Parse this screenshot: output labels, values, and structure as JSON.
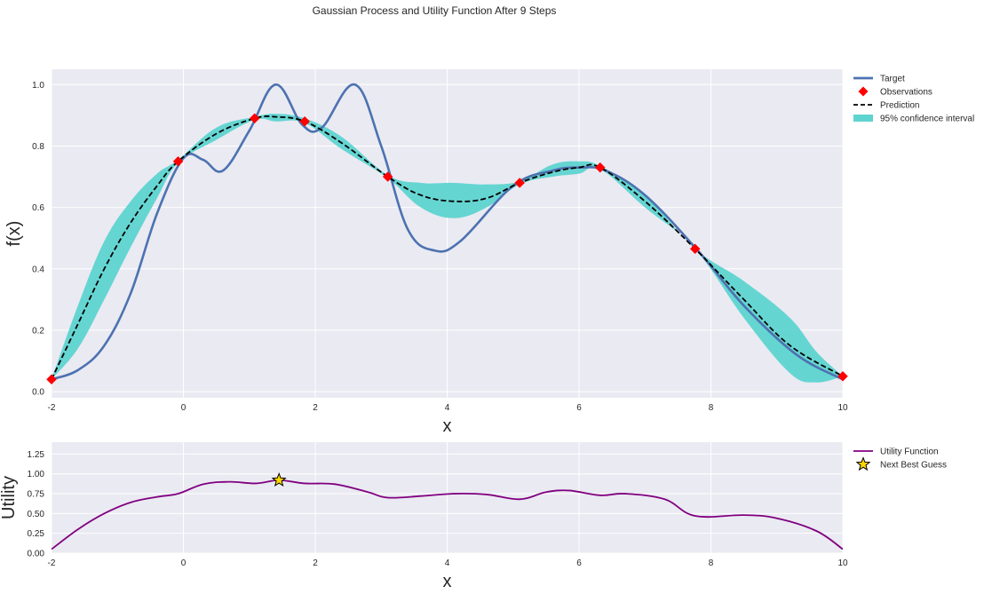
{
  "figure": {
    "title": "Gaussian Process and Utility Function After 9 Steps"
  },
  "colors": {
    "background": "#EAEAF2",
    "grid": "#FFFFFF",
    "target": "#4C72B0",
    "observations": "#FF0000",
    "prediction": "#000000",
    "confidence": "#5ED4D0",
    "utility": "#800080",
    "next_best": "#FFD700"
  },
  "chart_data": [
    {
      "type": "line",
      "xlabel": "x",
      "ylabel": "f(x)",
      "xlim": [
        -2,
        10
      ],
      "ylim": [
        -0.02,
        1.05
      ],
      "xticks": [
        "-2",
        "0",
        "2",
        "4",
        "6",
        "8",
        "10"
      ],
      "yticks": [
        "0.0",
        "0.2",
        "0.4",
        "0.6",
        "0.8",
        "1.0"
      ],
      "grid": true,
      "legend_position": "outside-top-right",
      "legend": [
        "Target",
        "Observations",
        "Prediction",
        "95% confidence interval"
      ],
      "series": [
        {
          "name": "Target",
          "kind": "line",
          "x": [
            -2,
            -1.6,
            -1.2,
            -0.8,
            -0.4,
            0,
            0.3,
            0.6,
            1.0,
            1.4,
            1.8,
            2.1,
            2.6,
            3.0,
            3.4,
            3.8,
            4.2,
            5.0,
            5.6,
            6.0,
            6.4,
            7.0,
            7.8,
            8.5,
            9.3,
            10
          ],
          "y": [
            0.04,
            0.07,
            0.15,
            0.32,
            0.58,
            0.76,
            0.755,
            0.72,
            0.85,
            1.0,
            0.87,
            0.86,
            1.0,
            0.8,
            0.53,
            0.46,
            0.49,
            0.67,
            0.72,
            0.73,
            0.72,
            0.64,
            0.46,
            0.28,
            0.12,
            0.04
          ]
        },
        {
          "name": "Observations",
          "kind": "scatter",
          "x": [
            -2,
            -0.08,
            1.08,
            1.84,
            3.1,
            5.1,
            6.32,
            7.76,
            10
          ],
          "y": [
            0.04,
            0.75,
            0.89,
            0.88,
            0.7,
            0.68,
            0.73,
            0.465,
            0.05
          ]
        },
        {
          "name": "Prediction",
          "kind": "line",
          "x": [
            -2,
            -1.6,
            -1.2,
            -0.8,
            -0.4,
            -0.08,
            0.5,
            1.08,
            1.4,
            1.84,
            2.4,
            3.1,
            3.6,
            4.1,
            4.6,
            5.1,
            5.6,
            6.0,
            6.32,
            7.0,
            7.76,
            8.5,
            9.2,
            10
          ],
          "y": [
            0.04,
            0.22,
            0.4,
            0.55,
            0.67,
            0.75,
            0.84,
            0.89,
            0.895,
            0.88,
            0.81,
            0.7,
            0.64,
            0.62,
            0.63,
            0.68,
            0.715,
            0.73,
            0.73,
            0.62,
            0.465,
            0.3,
            0.15,
            0.05
          ]
        },
        {
          "name": "95% confidence interval",
          "kind": "band",
          "x": [
            -2,
            -1.6,
            -1.2,
            -0.8,
            -0.4,
            -0.08,
            0.5,
            1.08,
            1.4,
            1.84,
            2.4,
            3.1,
            3.6,
            4.1,
            4.6,
            5.1,
            5.6,
            6.0,
            6.32,
            7.0,
            7.76,
            8.5,
            9.2,
            9.6,
            10
          ],
          "lower": [
            0.04,
            0.14,
            0.3,
            0.47,
            0.63,
            0.745,
            0.82,
            0.885,
            0.88,
            0.875,
            0.79,
            0.695,
            0.6,
            0.565,
            0.6,
            0.675,
            0.7,
            0.71,
            0.725,
            0.6,
            0.465,
            0.24,
            0.06,
            0.03,
            0.05
          ],
          "upper": [
            0.04,
            0.28,
            0.49,
            0.62,
            0.71,
            0.755,
            0.86,
            0.895,
            0.905,
            0.89,
            0.83,
            0.705,
            0.68,
            0.68,
            0.675,
            0.685,
            0.74,
            0.75,
            0.735,
            0.64,
            0.465,
            0.36,
            0.24,
            0.13,
            0.05
          ]
        }
      ]
    },
    {
      "type": "line",
      "xlabel": "x",
      "ylabel": "Utility",
      "xlim": [
        -2,
        10
      ],
      "ylim": [
        0,
        1.4
      ],
      "xticks": [
        "-2",
        "0",
        "2",
        "4",
        "6",
        "8",
        "10"
      ],
      "yticks": [
        "0.00",
        "0.25",
        "0.50",
        "0.75",
        "1.00",
        "1.25"
      ],
      "grid": true,
      "legend_position": "outside-top-right",
      "legend": [
        "Utility Function",
        "Next Best Guess"
      ],
      "series": [
        {
          "name": "Utility Function",
          "kind": "line",
          "x": [
            -2,
            -1.6,
            -1.2,
            -0.8,
            -0.4,
            -0.08,
            0.3,
            0.7,
            1.1,
            1.45,
            1.84,
            2.3,
            2.8,
            3.1,
            3.6,
            4.1,
            4.6,
            5.1,
            5.5,
            5.85,
            6.32,
            6.7,
            7.3,
            7.76,
            8.5,
            9.0,
            9.6,
            10
          ],
          "y": [
            0.05,
            0.3,
            0.5,
            0.64,
            0.71,
            0.75,
            0.87,
            0.9,
            0.88,
            0.92,
            0.88,
            0.87,
            0.77,
            0.7,
            0.72,
            0.75,
            0.74,
            0.68,
            0.77,
            0.79,
            0.73,
            0.75,
            0.68,
            0.47,
            0.48,
            0.44,
            0.28,
            0.05
          ]
        },
        {
          "name": "Next Best Guess",
          "kind": "marker",
          "x": [
            1.45
          ],
          "y": [
            0.92
          ]
        }
      ]
    }
  ]
}
